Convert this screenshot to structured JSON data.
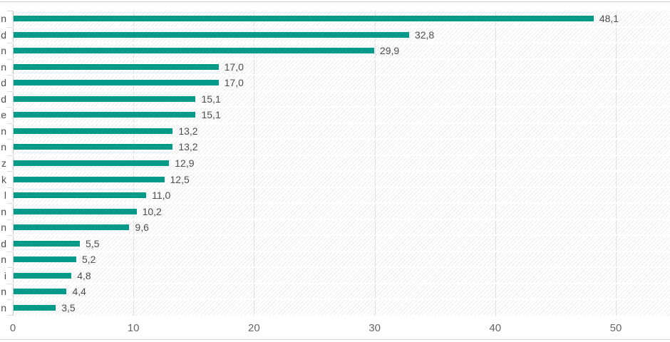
{
  "chart_data": {
    "type": "bar",
    "orientation": "horizontal",
    "title": "",
    "visible_category_labels": [
      "n",
      "d",
      "n",
      "n",
      "d",
      "d",
      "e",
      "n",
      "n",
      "z",
      "k",
      "l",
      "n",
      "n",
      "d",
      "n",
      "i",
      "n",
      "n"
    ],
    "values": [
      48.1,
      32.8,
      29.9,
      17.0,
      17.0,
      15.1,
      15.1,
      13.2,
      13.2,
      12.9,
      12.5,
      11.0,
      10.2,
      9.6,
      5.5,
      5.2,
      4.8,
      4.4,
      3.5
    ],
    "value_labels": [
      "48,1",
      "32,8",
      "29,9",
      "17,0",
      "17,0",
      "15,1",
      "15,1",
      "13,2",
      "13,2",
      "12,9",
      "12,5",
      "11,0",
      "10,2",
      "9,6",
      "5,5",
      "5,2",
      "4,8",
      "4,4",
      "3,5"
    ],
    "x_axis": {
      "min": 0,
      "max": 54.5,
      "ticks": [
        0,
        10,
        20,
        30,
        40,
        50
      ],
      "tick_labels": [
        "0",
        "10",
        "20",
        "30",
        "40",
        "50"
      ]
    },
    "grid": true,
    "legend": "none",
    "bar_color": "#009a88",
    "value_label_color": "#4d4d4d",
    "axis_label_color": "#666666",
    "plot_background": "hatched-diagonal-light-gray"
  }
}
